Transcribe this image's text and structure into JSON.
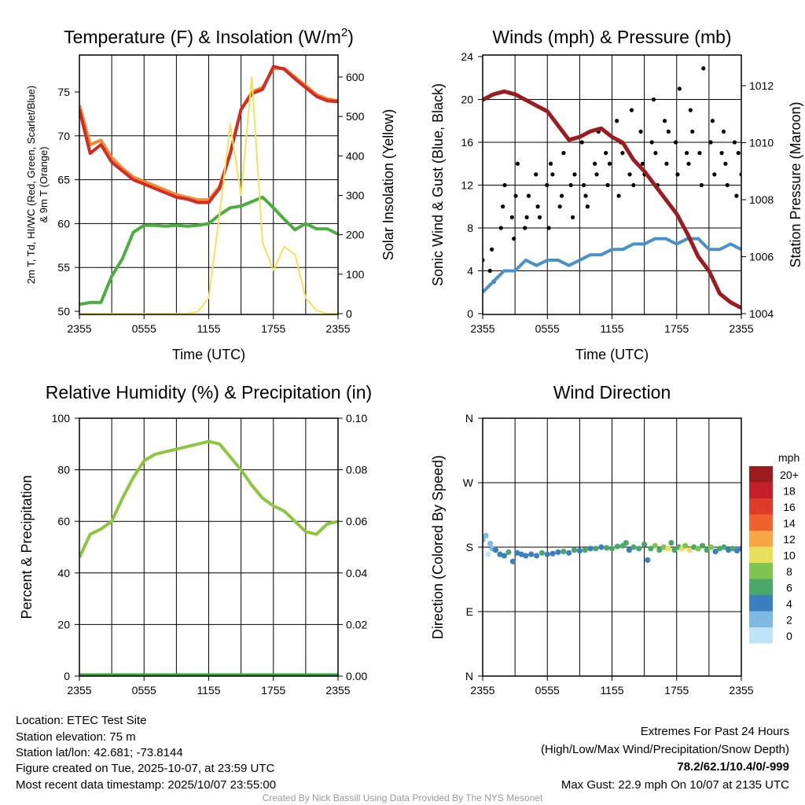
{
  "footer": {
    "location": "Location: ETEC Test Site",
    "elevation": "Station elevation: 75 m",
    "latlon": "Station lat/lon: 42.681; -73.8144",
    "created": "Figure created on Tue, 2025-10-07, at 23:59 UTC",
    "recent": "Most recent data timestamp: 2025/10/07 23:55:00",
    "extremes_title": "Extremes For Past 24 Hours",
    "extremes_sub": "(High/Low/Max Wind/Precipitation/Snow Depth)",
    "extremes_values": "78.2/62.1/10.4/0/-999",
    "max_gust": "Max Gust: 22.9 mph On 10/07 at 2135 UTC",
    "credit": "Created By Nick Bassill Using Data Provided By The NYS Mesonet"
  },
  "colors": {
    "extremes": "#c4202a"
  },
  "chart_data": [
    {
      "id": "temp",
      "type": "line",
      "title": "Temperature (F) & Insolation (W/m",
      "title_sup": "2",
      "title_end": ")",
      "xlabel": "Time (UTC)",
      "ylabel": "2m T, Td, HI/WC (Red, Green, Scarlet/Blue)",
      "ylabel2": "& 9m T (Orange)",
      "y2label": "Solar Insolation (Yellow)",
      "xticks": [
        "2355",
        "0555",
        "1155",
        "1755",
        "2355"
      ],
      "yticks": [
        "50",
        "55",
        "60",
        "65",
        "70",
        "75"
      ],
      "y2ticks": [
        "0",
        "100",
        "200",
        "300",
        "400",
        "500",
        "600"
      ],
      "ylim": [
        49.7,
        79.2
      ],
      "y2lim": [
        0,
        657
      ],
      "x_hours": 24,
      "series": [
        {
          "name": "9m T",
          "color": "#f08a30",
          "values": [
            73.5,
            69,
            69.5,
            67.5,
            66.3,
            65.3,
            64.8,
            64.3,
            63.8,
            63.3,
            63,
            62.7,
            62.7,
            64.2,
            68,
            73,
            75,
            75.5,
            77.7,
            77.7,
            76.7,
            75.7,
            74.7,
            74.2,
            74
          ]
        },
        {
          "name": "2m T",
          "color": "#d42a24",
          "values": [
            73,
            68,
            69,
            67,
            66,
            65,
            64.5,
            64,
            63.5,
            63,
            62.8,
            62.4,
            62.4,
            64,
            68,
            73,
            74.8,
            75.3,
            77.9,
            77.6,
            76.5,
            75.5,
            74.5,
            74,
            73.9
          ]
        },
        {
          "name": "2m Td",
          "color": "#4bae3e",
          "values": [
            50.8,
            51,
            51,
            54,
            56,
            59,
            59.8,
            59.8,
            59.7,
            59.8,
            59.7,
            59.8,
            60,
            61,
            61.8,
            62,
            62.5,
            63,
            61.8,
            60.5,
            59.3,
            60,
            59.4,
            59.4,
            58.8
          ]
        },
        {
          "name": "Solar",
          "color": "#f5e05a",
          "axis": "y2",
          "values": [
            0,
            0,
            0,
            0,
            0,
            0,
            0,
            0,
            0,
            0,
            0,
            5,
            40,
            250,
            480,
            300,
            600,
            180,
            110,
            170,
            150,
            40,
            8,
            0,
            0
          ]
        }
      ]
    },
    {
      "id": "wind",
      "type": "line",
      "title": "Winds (mph) & Pressure (mb)",
      "xlabel": "Time (UTC)",
      "ylabel": "Sonic Wind & Gust (Blue, Black)",
      "y2label": "Station Pressure (Maroon)",
      "xticks": [
        "2355",
        "0555",
        "1155",
        "1755",
        "2355"
      ],
      "yticks": [
        "0",
        "4",
        "8",
        "12",
        "16",
        "20",
        "24"
      ],
      "y2ticks": [
        "1004",
        "1006",
        "1008",
        "1010",
        "1012"
      ],
      "ylim": [
        0,
        24
      ],
      "y2lim": [
        1004,
        1013.05
      ],
      "x_hours": 24,
      "series": [
        {
          "name": "Sonic Wind",
          "color": "#4a90cc",
          "values": [
            2,
            3,
            4,
            4,
            5,
            4.5,
            5,
            5,
            4.5,
            5,
            5.5,
            5.5,
            6,
            6,
            6.5,
            6.5,
            7,
            7,
            6.5,
            7,
            7,
            6,
            6,
            6.5,
            6
          ]
        },
        {
          "name": "Pressure",
          "color": "#9b1b1e",
          "axis": "y2",
          "values": [
            1011.5,
            1011.7,
            1011.8,
            1011.7,
            1011.5,
            1011.3,
            1011.1,
            1010.6,
            1010.1,
            1010.2,
            1010.4,
            1010.5,
            1010.2,
            1010,
            1009.4,
            1009,
            1008.5,
            1008,
            1007.5,
            1006.8,
            1006,
            1005.5,
            1004.7,
            1004.4,
            1004.2
          ]
        }
      ],
      "gusts": [
        5,
        4,
        6,
        3,
        8,
        10,
        12,
        9,
        7,
        11,
        14,
        8,
        9,
        11,
        13,
        10,
        9,
        12,
        8,
        14,
        13,
        10,
        11,
        15,
        12,
        9,
        13,
        16,
        12,
        11,
        10,
        14,
        13,
        17,
        15,
        12,
        14,
        18,
        11,
        16,
        15,
        13,
        19,
        12,
        17,
        14,
        13,
        16,
        20,
        15,
        12,
        18,
        14,
        17,
        16,
        13,
        21,
        15,
        14,
        19,
        17,
        15,
        12,
        22.9,
        16,
        18,
        13,
        15,
        17,
        14,
        12,
        16,
        11,
        15,
        13
      ]
    },
    {
      "id": "rh",
      "type": "line",
      "title": "Relative Humidity (%) & Precipitation (in)",
      "ylabel": "Percent & Precipitation",
      "xticks": [
        "2355",
        "0555",
        "1155",
        "1755",
        "2355"
      ],
      "yticks": [
        "0",
        "20",
        "40",
        "60",
        "80",
        "100"
      ],
      "y2ticks": [
        "0.00",
        "0.02",
        "0.04",
        "0.06",
        "0.08",
        "0.10"
      ],
      "ylim": [
        0,
        100
      ],
      "y2lim": [
        0,
        0.1
      ],
      "x_hours": 24,
      "series": [
        {
          "name": "RH",
          "color": "#8cc63f",
          "values": [
            46,
            55,
            57,
            60,
            69,
            77,
            83.5,
            86,
            87,
            88,
            89,
            90,
            91,
            90,
            85,
            80,
            74,
            69,
            66,
            64,
            60,
            56,
            55,
            59,
            60
          ]
        },
        {
          "name": "Precipitation",
          "color": "#3aa340",
          "axis": "y2",
          "values": [
            0,
            0,
            0,
            0,
            0,
            0,
            0,
            0,
            0,
            0,
            0,
            0,
            0,
            0,
            0,
            0,
            0,
            0,
            0,
            0,
            0,
            0,
            0,
            0,
            0
          ]
        }
      ]
    },
    {
      "id": "dir",
      "type": "scatter",
      "title": "Wind Direction",
      "ylabel": "Direction (Colored By Speed)",
      "xticks": [
        "2355",
        "0555",
        "1155",
        "1755",
        "2355"
      ],
      "yticks": [
        "N",
        "E",
        "S",
        "W",
        "N"
      ],
      "ylim": [
        0,
        360
      ],
      "x_hours": 24,
      "legend_title": "mph",
      "legend": [
        "20+",
        "18",
        "16",
        "14",
        "12",
        "10",
        "8",
        "6",
        "4",
        "2",
        "0"
      ],
      "legend_colors": [
        "#9b1b1e",
        "#c4202a",
        "#e03a2a",
        "#f0622b",
        "#f7a646",
        "#e8e05a",
        "#7dc451",
        "#4aa66a",
        "#3b7fc0",
        "#7db9e3",
        "#bfe4f7"
      ],
      "points": [
        [
          0,
          190,
          1
        ],
        [
          0.3,
          196,
          1
        ],
        [
          0.5,
          170,
          0
        ],
        [
          0.7,
          185,
          1
        ],
        [
          0.9,
          178,
          2
        ],
        [
          1.2,
          176,
          3
        ],
        [
          1.6,
          170,
          4
        ],
        [
          2,
          168,
          3
        ],
        [
          2.4,
          173,
          5
        ],
        [
          2.8,
          160,
          4
        ],
        [
          3.2,
          172,
          3
        ],
        [
          3.6,
          170,
          4
        ],
        [
          4,
          168,
          4
        ],
        [
          4.5,
          170,
          3
        ],
        [
          5,
          168,
          4
        ],
        [
          5.5,
          172,
          5
        ],
        [
          6,
          170,
          3
        ],
        [
          6.5,
          171,
          4
        ],
        [
          7,
          173,
          4
        ],
        [
          7.5,
          174,
          5
        ],
        [
          8,
          172,
          3
        ],
        [
          8.5,
          176,
          5
        ],
        [
          9,
          175,
          4
        ],
        [
          9.5,
          176,
          5
        ],
        [
          10,
          178,
          4
        ],
        [
          10.5,
          178,
          5
        ],
        [
          11,
          180,
          4
        ],
        [
          11.5,
          179,
          5
        ],
        [
          12,
          178,
          5
        ],
        [
          12.5,
          181,
          6
        ],
        [
          13,
          182,
          5
        ],
        [
          13.3,
          186,
          6
        ],
        [
          13.6,
          176,
          4
        ],
        [
          14,
          180,
          5
        ],
        [
          14.5,
          178,
          6
        ],
        [
          15,
          184,
          6
        ],
        [
          15.3,
          162,
          4
        ],
        [
          15.6,
          178,
          6
        ],
        [
          16,
          182,
          7
        ],
        [
          16.4,
          176,
          6
        ],
        [
          16.8,
          180,
          8
        ],
        [
          17.2,
          178,
          9
        ],
        [
          17.5,
          186,
          6
        ],
        [
          17.8,
          176,
          5
        ],
        [
          18.2,
          180,
          6
        ],
        [
          18.5,
          178,
          9
        ],
        [
          18.8,
          182,
          7
        ],
        [
          19.2,
          176,
          9
        ],
        [
          19.6,
          180,
          6
        ],
        [
          20,
          178,
          8
        ],
        [
          20.4,
          182,
          5
        ],
        [
          20.8,
          176,
          6
        ],
        [
          21.2,
          180,
          7
        ],
        [
          21.6,
          174,
          4
        ],
        [
          22,
          178,
          5
        ],
        [
          22.4,
          180,
          6
        ],
        [
          22.8,
          176,
          4
        ],
        [
          23.2,
          178,
          5
        ],
        [
          23.6,
          175,
          4
        ],
        [
          24,
          178,
          4
        ]
      ]
    }
  ]
}
